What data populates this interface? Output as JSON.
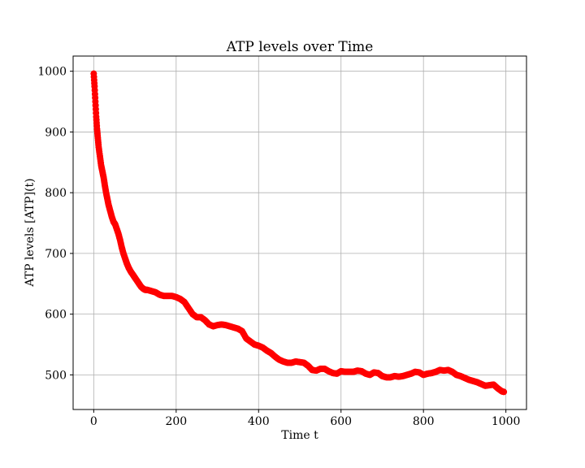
{
  "chart_data": {
    "type": "scatter",
    "title": "ATP levels over Time",
    "xlabel": "Time t",
    "ylabel": "ATP levels [ATP](t)",
    "xlim": [
      -50,
      1050
    ],
    "ylim": [
      443,
      1025
    ],
    "xticks": [
      0,
      200,
      400,
      600,
      800,
      1000
    ],
    "yticks": [
      500,
      600,
      700,
      800,
      900,
      1000
    ],
    "grid": true,
    "marker_color": "#ff0000",
    "series": [
      {
        "x": [
          0,
          2,
          4,
          6,
          8,
          10,
          12,
          15,
          18,
          21,
          24,
          27,
          30,
          33,
          36,
          40,
          44,
          48,
          52,
          56,
          60,
          64,
          68,
          72,
          76,
          80,
          85,
          90,
          95,
          100,
          105,
          110,
          115,
          120,
          125,
          130,
          140,
          150,
          160,
          170,
          180,
          190,
          200,
          210,
          220,
          230,
          240,
          250,
          260,
          270,
          280,
          290,
          300,
          310,
          320,
          330,
          340,
          350,
          360,
          370,
          380,
          390,
          400,
          410,
          420,
          430,
          440,
          450,
          460,
          470,
          480,
          490,
          500,
          510,
          520,
          530,
          540,
          550,
          560,
          570,
          580,
          590,
          600,
          610,
          620,
          630,
          640,
          650,
          660,
          670,
          680,
          690,
          700,
          710,
          720,
          730,
          740,
          750,
          760,
          770,
          780,
          790,
          800,
          810,
          820,
          830,
          840,
          850,
          860,
          870,
          880,
          890,
          900,
          910,
          920,
          930,
          940,
          950,
          960,
          970,
          980,
          990,
          995
        ],
        "y": [
          996,
          975,
          950,
          925,
          905,
          890,
          875,
          860,
          845,
          835,
          825,
          812,
          800,
          790,
          780,
          770,
          760,
          752,
          748,
          740,
          732,
          722,
          710,
          700,
          692,
          684,
          676,
          670,
          665,
          660,
          655,
          650,
          645,
          642,
          640,
          640,
          638,
          636,
          632,
          630,
          630,
          630,
          628,
          625,
          620,
          610,
          600,
          595,
          595,
          590,
          583,
          580,
          582,
          583,
          582,
          580,
          578,
          576,
          572,
          560,
          555,
          550,
          548,
          545,
          540,
          536,
          530,
          525,
          522,
          520,
          520,
          522,
          521,
          520,
          515,
          508,
          507,
          510,
          510,
          506,
          503,
          502,
          506,
          505,
          505,
          505,
          507,
          506,
          502,
          500,
          504,
          503,
          498,
          496,
          496,
          498,
          497,
          498,
          500,
          502,
          505,
          504,
          500,
          502,
          503,
          505,
          508,
          507,
          508,
          505,
          500,
          498,
          495,
          492,
          490,
          488,
          485,
          482,
          483,
          484,
          478,
          473,
          472
        ]
      }
    ]
  }
}
